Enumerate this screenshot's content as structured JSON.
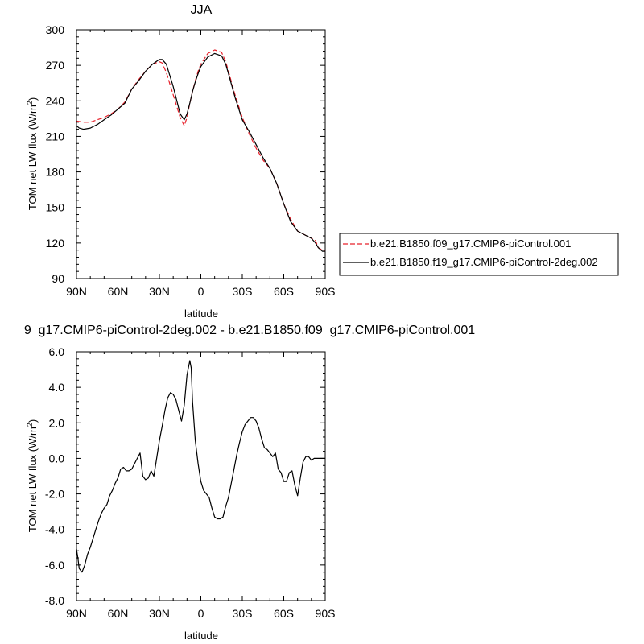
{
  "chart_data": [
    {
      "type": "line",
      "title": "JJA",
      "xlabel": "latitude",
      "ylabel": "TOM net LW flux (W/m²)",
      "ylabel_parts": {
        "main": "TOM net LW flux (W/m",
        "sup": "2",
        "close": ")"
      },
      "xlim": [
        90,
        -90
      ],
      "ylim": [
        90,
        300
      ],
      "xticks": [
        90,
        60,
        30,
        0,
        -30,
        -60,
        -90
      ],
      "xticklabels": [
        "90N",
        "60N",
        "30N",
        "0",
        "30S",
        "60S",
        "90S"
      ],
      "yticks": [
        90,
        120,
        150,
        180,
        210,
        240,
        270,
        300
      ],
      "yticklabels": [
        "90",
        "120",
        "150",
        "180",
        "210",
        "240",
        "270",
        "300"
      ],
      "legend_position": "right",
      "series": [
        {
          "name": "b.e21.B1850.f09_g17.CMIP6-piControl.001",
          "color": "#e8202a",
          "style": "dashed",
          "x": [
            90,
            85,
            80,
            75,
            70,
            65,
            60,
            55,
            50,
            45,
            40,
            35,
            30,
            28,
            25,
            20,
            15,
            12,
            10,
            8,
            6,
            4,
            2,
            0,
            -5,
            -10,
            -15,
            -18,
            -20,
            -25,
            -30,
            -35,
            -40,
            -45,
            -50,
            -55,
            -60,
            -65,
            -70,
            -75,
            -80,
            -83,
            -85,
            -88,
            -90
          ],
          "y": [
            223,
            222,
            222,
            224,
            226,
            229,
            233,
            239,
            250,
            258,
            265,
            271,
            273,
            272,
            264,
            245,
            226,
            219,
            226,
            238,
            248,
            257,
            265,
            271,
            280,
            283,
            281,
            273,
            265,
            244,
            226,
            212,
            200,
            190,
            183,
            170,
            153,
            140,
            130,
            127,
            124,
            122,
            116,
            114,
            113
          ]
        },
        {
          "name": "b.e21.B1850.f19_g17.CMIP6-piControl-2deg.002",
          "color": "#000000",
          "style": "solid",
          "x": [
            90,
            88,
            85,
            80,
            75,
            70,
            65,
            60,
            55,
            50,
            45,
            40,
            35,
            30,
            28,
            25,
            20,
            15,
            12,
            10,
            8,
            6,
            4,
            2,
            0,
            -5,
            -10,
            -15,
            -18,
            -20,
            -25,
            -30,
            -35,
            -40,
            -45,
            -50,
            -55,
            -60,
            -65,
            -70,
            -75,
            -80,
            -83,
            -85,
            -88,
            -90
          ],
          "y": [
            219,
            217,
            216,
            217,
            220,
            224,
            228,
            233,
            238,
            250,
            257,
            265,
            271,
            275,
            275,
            271,
            252,
            229,
            224,
            229,
            238,
            248,
            256,
            263,
            269,
            277,
            280,
            278,
            271,
            263,
            242,
            224,
            214,
            203,
            192,
            183,
            170,
            153,
            138,
            130,
            127,
            124,
            120,
            116,
            113,
            113
          ]
        }
      ]
    },
    {
      "type": "line",
      "title": "9_g17.CMIP6-piControl-2deg.002 - b.e21.B1850.f09_g17.CMIP6-piControl.001",
      "xlabel": "latitude",
      "ylabel": "TOM net LW flux (W/m²)",
      "ylabel_parts": {
        "main": "TOM net LW flux (W/m",
        "sup": "2",
        "close": ")"
      },
      "xlim": [
        90,
        -90
      ],
      "ylim": [
        -8,
        6
      ],
      "xticks": [
        90,
        60,
        30,
        0,
        -30,
        -60,
        -90
      ],
      "xticklabels": [
        "90N",
        "60N",
        "30N",
        "0",
        "30S",
        "60S",
        "90S"
      ],
      "yticks": [
        -8,
        -6,
        -4,
        -2,
        0,
        2,
        4,
        6
      ],
      "yticklabels": [
        "-8.0",
        "-6.0",
        "-4.0",
        "-2.0",
        "0.0",
        "2.0",
        "4.0",
        "6.0"
      ],
      "series": [
        {
          "name": "",
          "color": "#000000",
          "style": "solid",
          "x": [
            90,
            89,
            88,
            86,
            84,
            82,
            80,
            78,
            76,
            74,
            72,
            70,
            68,
            66,
            64,
            62,
            60,
            58,
            56,
            54,
            52,
            50,
            48,
            46,
            44,
            42,
            40,
            38,
            36,
            34,
            32,
            30,
            28,
            26,
            24,
            22,
            20,
            18,
            16,
            14,
            12,
            10,
            8,
            7,
            6,
            4,
            2,
            0,
            -2,
            -4,
            -6,
            -8,
            -10,
            -12,
            -14,
            -16,
            -18,
            -20,
            -22,
            -24,
            -26,
            -28,
            -30,
            -32,
            -34,
            -36,
            -38,
            -40,
            -42,
            -44,
            -46,
            -48,
            -50,
            -52,
            -54,
            -56,
            -58,
            -60,
            -62,
            -64,
            -66,
            -68,
            -70,
            -72,
            -74,
            -76,
            -78,
            -80,
            -82,
            -84,
            -86,
            -88,
            -90
          ],
          "y": [
            -5.1,
            -5.6,
            -6.2,
            -6.4,
            -6.0,
            -5.4,
            -5.0,
            -4.5,
            -4.0,
            -3.5,
            -3.1,
            -2.8,
            -2.6,
            -2.1,
            -1.8,
            -1.4,
            -1.1,
            -0.6,
            -0.5,
            -0.7,
            -0.7,
            -0.6,
            -0.3,
            0.0,
            0.3,
            -1.0,
            -1.2,
            -1.1,
            -0.7,
            -1.0,
            0.0,
            1.0,
            1.8,
            2.7,
            3.4,
            3.7,
            3.6,
            3.3,
            2.7,
            2.1,
            3.0,
            4.7,
            5.5,
            5.1,
            3.2,
            1.0,
            -0.3,
            -1.3,
            -1.8,
            -2.0,
            -2.2,
            -2.8,
            -3.3,
            -3.4,
            -3.4,
            -3.3,
            -2.7,
            -2.2,
            -1.4,
            -0.6,
            0.2,
            0.9,
            1.5,
            1.9,
            2.1,
            2.3,
            2.3,
            2.1,
            1.7,
            1.1,
            0.6,
            0.5,
            0.3,
            0.1,
            0.3,
            -0.6,
            -0.8,
            -1.3,
            -1.3,
            -0.8,
            -0.7,
            -1.5,
            -2.1,
            -1.1,
            -0.2,
            0.1,
            0.1,
            -0.1,
            0.0,
            0.0,
            0.0,
            0.0,
            0.0
          ]
        }
      ]
    }
  ]
}
